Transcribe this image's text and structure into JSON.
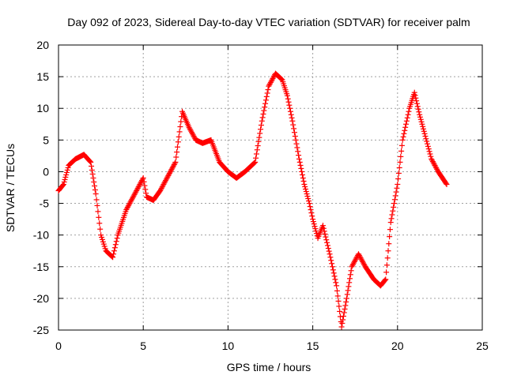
{
  "chart_data": {
    "type": "scatter",
    "title": "Day 092 of 2023, Sidereal Day-to-day VTEC variation (SDTVAR) for receiver palm",
    "xlabel": "GPS time / hours",
    "ylabel": "SDTVAR / TECUs",
    "xlim": [
      0,
      25
    ],
    "ylim": [
      -25,
      20
    ],
    "xticks": [
      0,
      5,
      10,
      15,
      20,
      25
    ],
    "yticks": [
      -25,
      -20,
      -15,
      -10,
      -5,
      0,
      5,
      10,
      15,
      20
    ],
    "grid": true,
    "marker": "plus",
    "color": "#ff0000",
    "anchors": [
      [
        0.0,
        -3.0
      ],
      [
        0.3,
        -2.0
      ],
      [
        0.6,
        1.0
      ],
      [
        1.0,
        2.0
      ],
      [
        1.5,
        2.7
      ],
      [
        1.9,
        1.5
      ],
      [
        2.2,
        -3.5
      ],
      [
        2.5,
        -10.0
      ],
      [
        2.8,
        -12.5
      ],
      [
        3.2,
        -13.5
      ],
      [
        3.5,
        -10.0
      ],
      [
        4.0,
        -6.0
      ],
      [
        4.4,
        -4.0
      ],
      [
        4.8,
        -2.0
      ],
      [
        5.0,
        -1.0
      ],
      [
        5.2,
        -4.0
      ],
      [
        5.6,
        -4.5
      ],
      [
        6.0,
        -3.0
      ],
      [
        6.4,
        -1.0
      ],
      [
        6.9,
        1.5
      ],
      [
        7.3,
        9.5
      ],
      [
        7.7,
        7.0
      ],
      [
        8.1,
        5.0
      ],
      [
        8.5,
        4.5
      ],
      [
        9.0,
        5.0
      ],
      [
        9.5,
        1.5
      ],
      [
        10.0,
        0.0
      ],
      [
        10.5,
        -1.0
      ],
      [
        11.0,
        0.0
      ],
      [
        11.6,
        1.5
      ],
      [
        12.0,
        8.0
      ],
      [
        12.4,
        13.5
      ],
      [
        12.8,
        15.5
      ],
      [
        13.2,
        14.5
      ],
      [
        13.5,
        12.0
      ],
      [
        13.8,
        8.0
      ],
      [
        14.2,
        2.0
      ],
      [
        14.5,
        -2.0
      ],
      [
        14.8,
        -5.0
      ],
      [
        15.0,
        -7.5
      ],
      [
        15.3,
        -10.5
      ],
      [
        15.6,
        -8.5
      ],
      [
        16.0,
        -13.0
      ],
      [
        16.4,
        -18.0
      ],
      [
        16.7,
        -24.5
      ],
      [
        17.0,
        -20.0
      ],
      [
        17.3,
        -15.0
      ],
      [
        17.7,
        -13.0
      ],
      [
        18.1,
        -15.0
      ],
      [
        18.6,
        -17.0
      ],
      [
        19.0,
        -18.0
      ],
      [
        19.3,
        -17.0
      ],
      [
        19.6,
        -8.0
      ],
      [
        20.0,
        -2.0
      ],
      [
        20.3,
        5.0
      ],
      [
        20.7,
        10.0
      ],
      [
        21.0,
        12.5
      ],
      [
        21.3,
        9.0
      ],
      [
        21.6,
        6.0
      ],
      [
        22.0,
        2.0
      ],
      [
        22.4,
        0.0
      ],
      [
        22.9,
        -2.0
      ]
    ]
  }
}
